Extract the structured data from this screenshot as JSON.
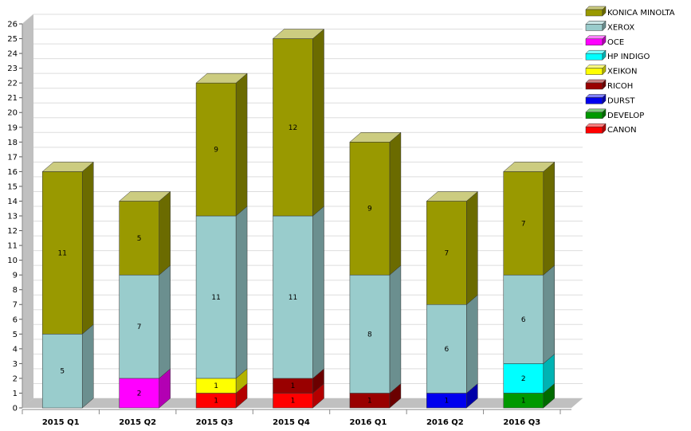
{
  "chart_data": {
    "type": "bar",
    "stacked": true,
    "three_d": true,
    "categories": [
      "2015 Q1",
      "2015 Q2",
      "2015 Q3",
      "2015 Q4",
      "2016 Q1",
      "2016 Q2",
      "2016 Q3"
    ],
    "ylim": [
      0,
      26
    ],
    "grid": true,
    "legend": "top-right",
    "series": [
      {
        "name": "CANON",
        "color": "#ff0000",
        "values": [
          0,
          0,
          1,
          1,
          0,
          0,
          0
        ]
      },
      {
        "name": "DEVELOP",
        "color": "#009900",
        "values": [
          0,
          0,
          0,
          0,
          0,
          0,
          1
        ]
      },
      {
        "name": "DURST",
        "color": "#0000ee",
        "values": [
          0,
          0,
          0,
          0,
          0,
          1,
          0
        ]
      },
      {
        "name": "RICOH",
        "color": "#990000",
        "values": [
          0,
          0,
          0,
          1,
          1,
          0,
          0
        ]
      },
      {
        "name": "XEIKON",
        "color": "#ffff00",
        "values": [
          0,
          0,
          1,
          0,
          0,
          0,
          0
        ]
      },
      {
        "name": "HP INDIGO",
        "color": "#00ffff",
        "values": [
          0,
          0,
          0,
          0,
          0,
          0,
          2
        ]
      },
      {
        "name": "OCE",
        "color": "#ff00ff",
        "values": [
          0,
          2,
          0,
          0,
          0,
          0,
          0
        ]
      },
      {
        "name": "XEROX",
        "color": "#99cccc",
        "values": [
          5,
          7,
          11,
          11,
          8,
          6,
          6
        ]
      },
      {
        "name": "KONICA MINOLTA",
        "color": "#999900",
        "values": [
          11,
          5,
          9,
          12,
          9,
          7,
          7
        ]
      }
    ]
  }
}
